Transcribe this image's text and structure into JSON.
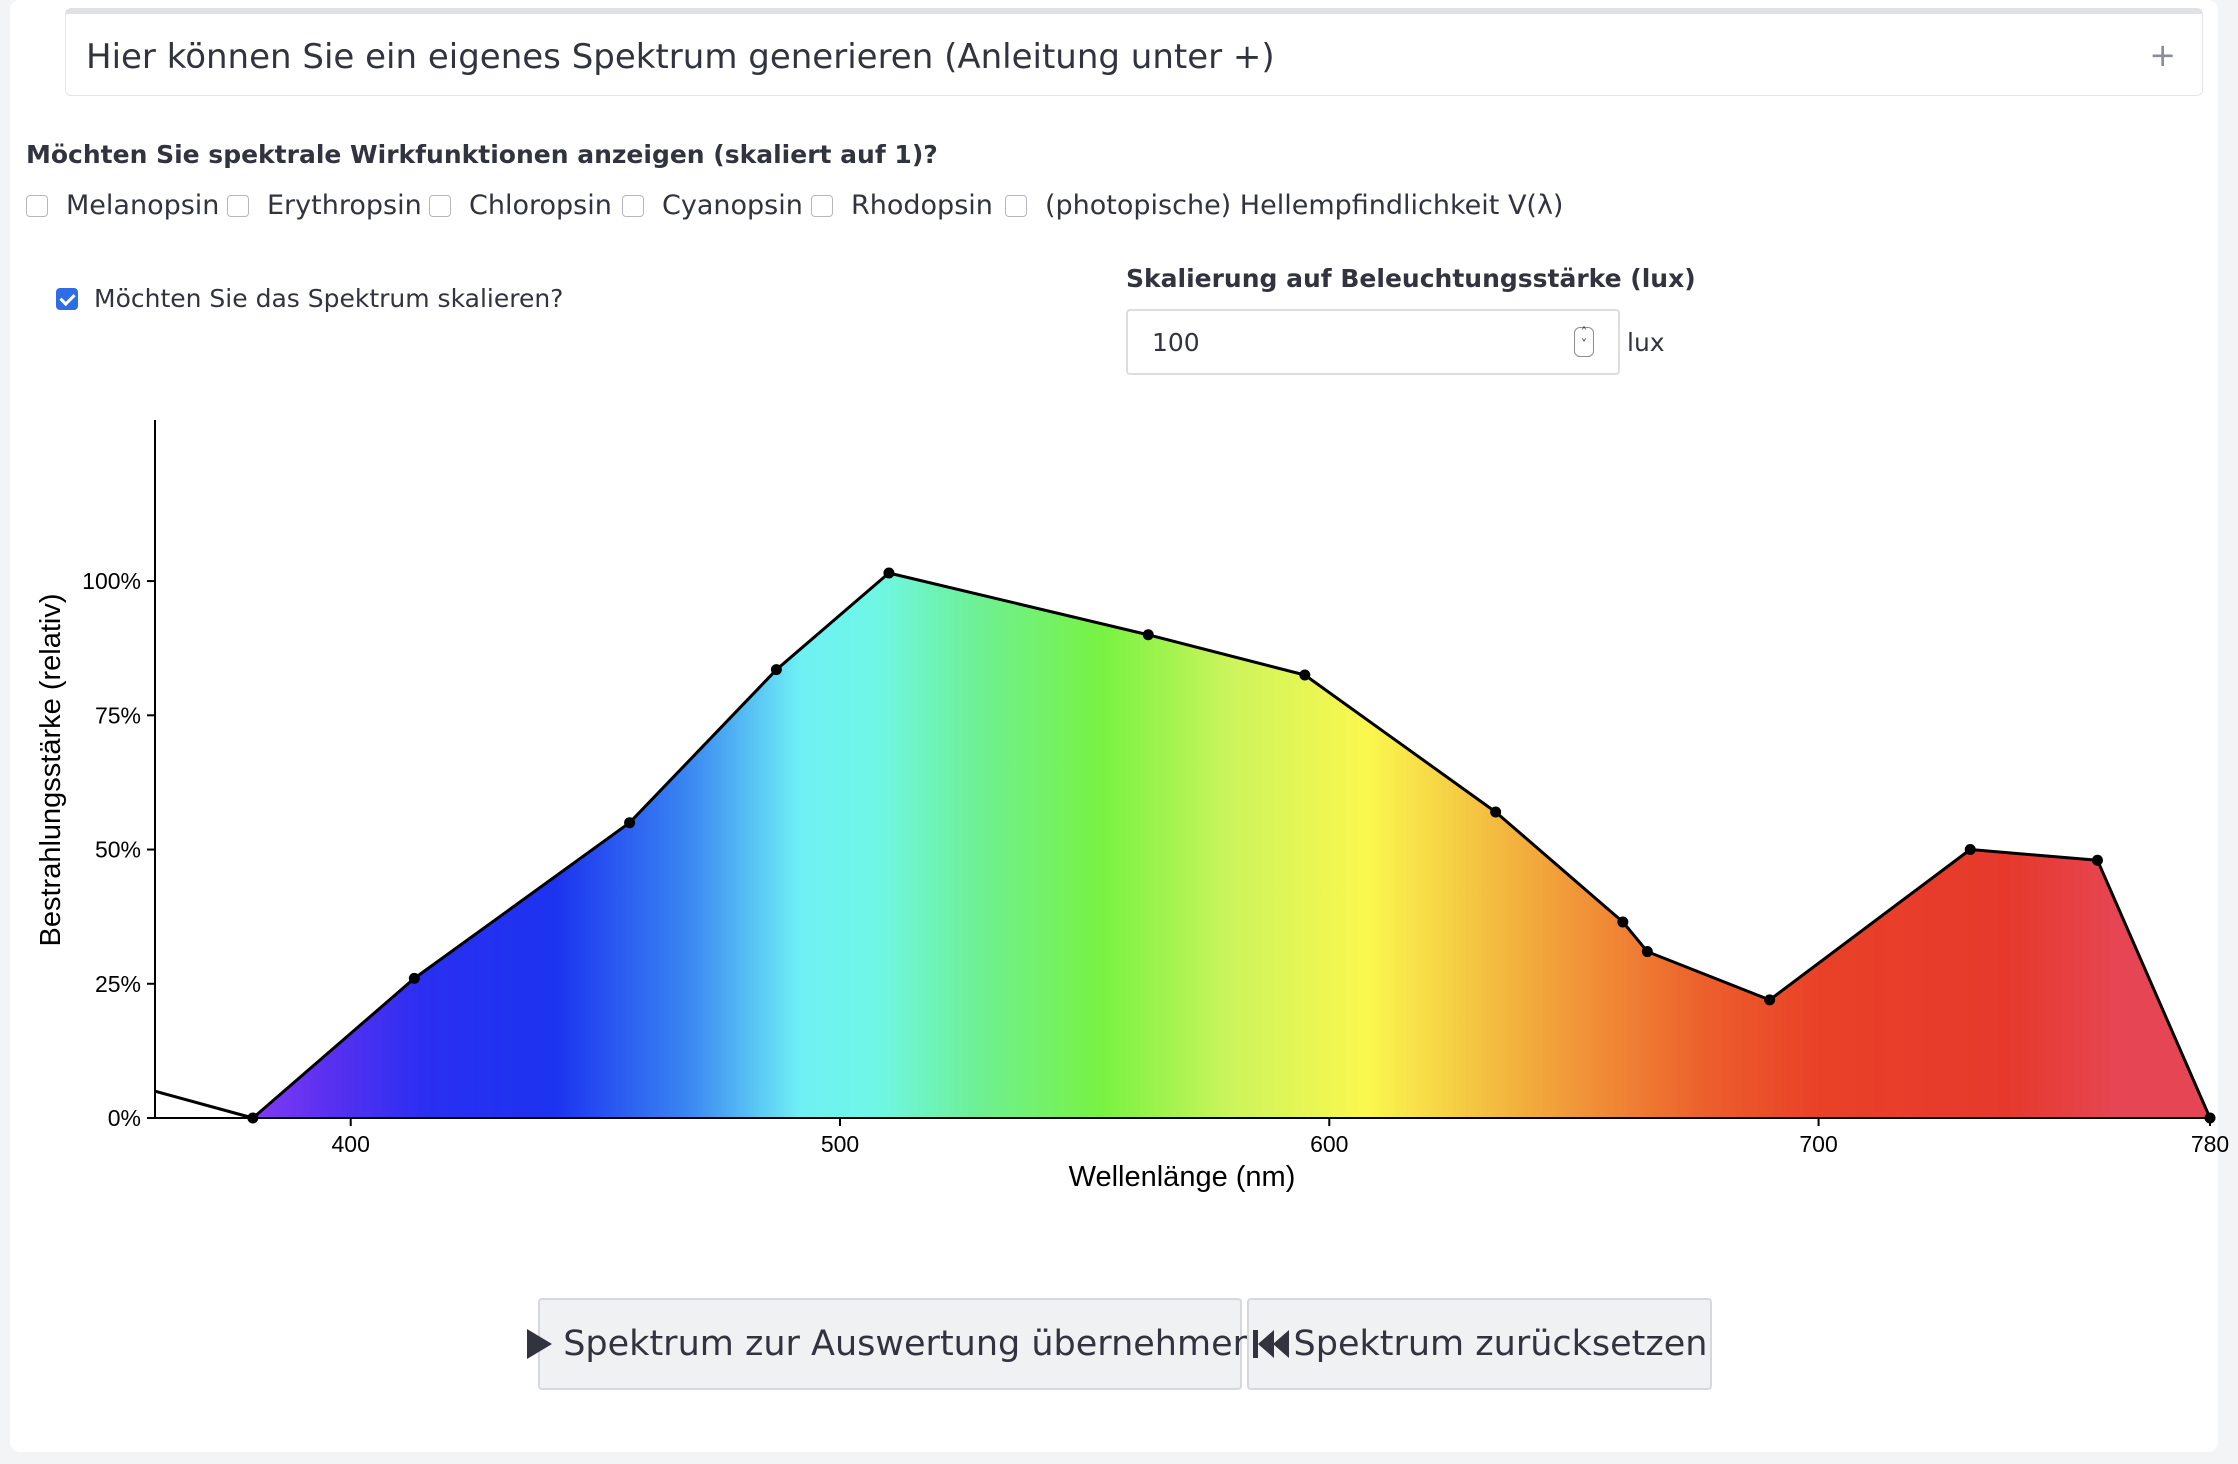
{
  "expander": {
    "title": "Hier können Sie ein eigenes Spektrum generieren (Anleitung unter +)",
    "toggle": "+"
  },
  "functions_question": "Möchten Sie spektrale Wirkfunktionen anzeigen (skaliert auf 1)?",
  "function_checkboxes": [
    {
      "label": "Melanopsin",
      "checked": false
    },
    {
      "label": "Erythropsin",
      "checked": false
    },
    {
      "label": "Chloropsin",
      "checked": false
    },
    {
      "label": "Cyanopsin",
      "checked": false
    },
    {
      "label": "Rhodopsin",
      "checked": false
    },
    {
      "label": "(photopische) Hellempfindlichkeit V(λ)",
      "checked": false
    }
  ],
  "scale_checkbox": {
    "label": "Möchten Sie das Spektrum skalieren?",
    "checked": true
  },
  "lux": {
    "title": "Skalierung auf Beleuchtungsstärke (lux)",
    "value": "100",
    "unit": "lux"
  },
  "chart_data": {
    "type": "area",
    "xlabel": "Wellenlänge (nm)",
    "ylabel": "Bestrahlungsstärke (relativ)",
    "xlim": [
      360,
      780
    ],
    "ylim": [
      0,
      1.3
    ],
    "x_ticks": [
      400,
      500,
      600,
      700,
      780
    ],
    "y_ticks": [
      0,
      0.25,
      0.5,
      0.75,
      1.0
    ],
    "y_tick_labels": [
      "0%",
      "25%",
      "50%",
      "75%",
      "100%"
    ],
    "x": [
      380,
      413,
      457,
      487,
      510,
      563,
      595,
      634,
      660,
      665,
      690,
      731,
      757,
      780
    ],
    "y": [
      0.0,
      0.26,
      0.55,
      0.835,
      1.015,
      0.9,
      0.825,
      0.57,
      0.365,
      0.31,
      0.22,
      0.5,
      0.48,
      0.0
    ],
    "lead_in": {
      "x": [
        360,
        380
      ],
      "y": [
        0.05,
        0.0
      ]
    },
    "fill": "wavelength-spectrum-gradient",
    "line_color": "#000000"
  },
  "buttons": {
    "apply": {
      "label": "Spektrum zur Auswertung übernehmen",
      "icon": "play-icon"
    },
    "reset": {
      "label": "Spektrum zurücksetzen",
      "icon": "skip-back-icon"
    }
  }
}
